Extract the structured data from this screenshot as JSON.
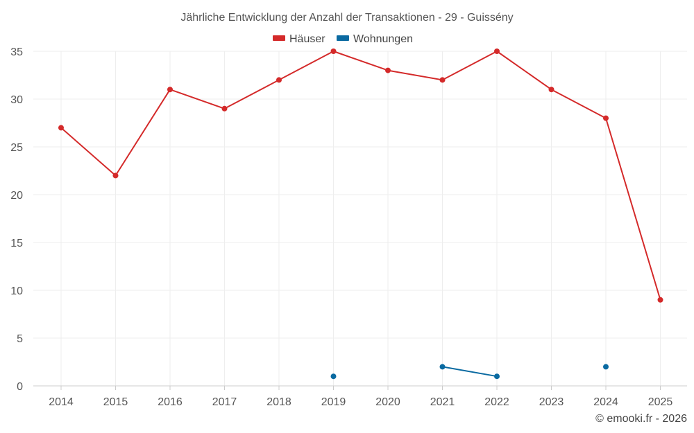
{
  "chart_data": {
    "type": "line",
    "title": "Jährliche Entwicklung der Anzahl der Transaktionen - 29 - Guissény",
    "xlabel": "",
    "ylabel": "",
    "categories": [
      "2014",
      "2015",
      "2016",
      "2017",
      "2018",
      "2019",
      "2020",
      "2021",
      "2022",
      "2023",
      "2024",
      "2025"
    ],
    "ylim": [
      0,
      35
    ],
    "yticks": [
      0,
      5,
      10,
      15,
      20,
      25,
      30,
      35
    ],
    "grid": true,
    "legend_position": "top-center",
    "series": [
      {
        "name": "Häuser",
        "color": "#d42a2a",
        "values": [
          27,
          22,
          31,
          29,
          32,
          35,
          33,
          32,
          35,
          31,
          28,
          9
        ]
      },
      {
        "name": "Wohnungen",
        "color": "#0a6aa1",
        "values": [
          null,
          null,
          null,
          null,
          null,
          1,
          null,
          2,
          1,
          null,
          2,
          null
        ]
      }
    ]
  },
  "credit": "© emooki.fr - 2026"
}
